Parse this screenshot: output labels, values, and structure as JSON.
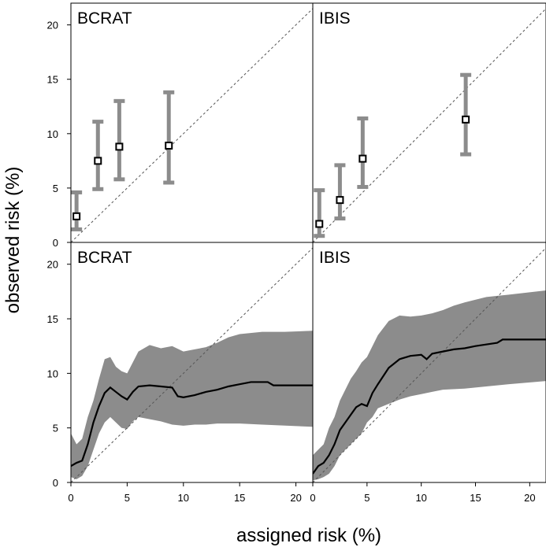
{
  "figure": {
    "xlabel": "assigned risk (%)",
    "ylabel": "observed risk (%)",
    "colors": {
      "band": "#8c8c8c",
      "bar": "#8c8c8c",
      "line": "#000000",
      "diag": "#555555",
      "frame": "#000000"
    }
  },
  "chart_data": [
    {
      "type": "scatter",
      "title": "BCRAT",
      "xlim": [
        0,
        21.5
      ],
      "ylim": [
        0,
        22
      ],
      "xticks": [
        0,
        5,
        10,
        15,
        20
      ],
      "yticks": [
        0,
        5,
        10,
        15,
        20
      ],
      "reference_line": "y = x",
      "points": [
        {
          "x": 0.5,
          "y": 2.4,
          "lo": 1.2,
          "hi": 4.6
        },
        {
          "x": 2.4,
          "y": 7.5,
          "lo": 4.9,
          "hi": 11.1
        },
        {
          "x": 4.3,
          "y": 8.8,
          "lo": 5.8,
          "hi": 13.0
        },
        {
          "x": 8.7,
          "y": 8.9,
          "lo": 5.5,
          "hi": 13.8
        }
      ]
    },
    {
      "type": "scatter",
      "title": "IBIS",
      "xlim": [
        0,
        21.5
      ],
      "ylim": [
        0,
        22
      ],
      "xticks": [
        0,
        5,
        10,
        15,
        20
      ],
      "yticks": [
        0,
        5,
        10,
        15,
        20
      ],
      "reference_line": "y = x",
      "points": [
        {
          "x": 0.6,
          "y": 1.7,
          "lo": 0.6,
          "hi": 4.8
        },
        {
          "x": 2.5,
          "y": 3.9,
          "lo": 2.2,
          "hi": 7.1
        },
        {
          "x": 4.6,
          "y": 7.7,
          "lo": 5.1,
          "hi": 11.4
        },
        {
          "x": 14.1,
          "y": 11.3,
          "lo": 8.1,
          "hi": 15.4
        }
      ]
    },
    {
      "type": "line",
      "title": "BCRAT",
      "xlim": [
        0,
        21.5
      ],
      "ylim": [
        0,
        22
      ],
      "xticks": [
        0,
        5,
        10,
        15,
        20
      ],
      "yticks": [
        0,
        5,
        10,
        15,
        20
      ],
      "reference_line": "y = x",
      "line": [
        [
          0,
          1.5
        ],
        [
          0.5,
          1.8
        ],
        [
          1,
          2.0
        ],
        [
          1.5,
          3.5
        ],
        [
          2,
          5.5
        ],
        [
          2.5,
          7.0
        ],
        [
          3,
          8.2
        ],
        [
          3.5,
          8.7
        ],
        [
          4,
          8.3
        ],
        [
          4.5,
          7.9
        ],
        [
          5,
          7.6
        ],
        [
          5.5,
          8.3
        ],
        [
          6,
          8.8
        ],
        [
          7,
          8.9
        ],
        [
          8,
          8.8
        ],
        [
          9,
          8.7
        ],
        [
          9.5,
          7.9
        ],
        [
          10,
          7.8
        ],
        [
          11,
          8.0
        ],
        [
          12,
          8.3
        ],
        [
          13,
          8.5
        ],
        [
          14,
          8.8
        ],
        [
          15,
          9.0
        ],
        [
          16,
          9.2
        ],
        [
          17.5,
          9.2
        ],
        [
          18,
          8.9
        ],
        [
          21.5,
          8.9
        ]
      ],
      "band_upper": [
        [
          0,
          4.5
        ],
        [
          0.5,
          3.5
        ],
        [
          1,
          4.0
        ],
        [
          1.5,
          6.0
        ],
        [
          2,
          7.5
        ],
        [
          2.5,
          9.5
        ],
        [
          3,
          11.3
        ],
        [
          3.5,
          11.5
        ],
        [
          4,
          10.6
        ],
        [
          4.5,
          10.2
        ],
        [
          5,
          10.0
        ],
        [
          5.5,
          11.0
        ],
        [
          6,
          12.0
        ],
        [
          7,
          12.6
        ],
        [
          8,
          12.3
        ],
        [
          9,
          12.5
        ],
        [
          10,
          12.0
        ],
        [
          11,
          12.2
        ],
        [
          12,
          12.4
        ],
        [
          13,
          12.8
        ],
        [
          14,
          13.3
        ],
        [
          15,
          13.6
        ],
        [
          17,
          13.8
        ],
        [
          19,
          13.8
        ],
        [
          21.5,
          13.9
        ]
      ],
      "band_lower": [
        [
          0,
          0.5
        ],
        [
          0.5,
          0.3
        ],
        [
          1,
          0.6
        ],
        [
          1.5,
          1.5
        ],
        [
          2,
          3.0
        ],
        [
          2.5,
          4.5
        ],
        [
          3,
          5.5
        ],
        [
          3.5,
          6.0
        ],
        [
          4,
          5.5
        ],
        [
          4.5,
          5.0
        ],
        [
          5,
          4.9
        ],
        [
          5.5,
          5.6
        ],
        [
          6,
          6.0
        ],
        [
          7,
          5.8
        ],
        [
          8,
          5.6
        ],
        [
          9,
          5.3
        ],
        [
          10,
          5.2
        ],
        [
          11,
          5.3
        ],
        [
          12,
          5.3
        ],
        [
          13,
          5.4
        ],
        [
          15,
          5.4
        ],
        [
          17,
          5.3
        ],
        [
          21.5,
          5.1
        ]
      ]
    },
    {
      "type": "line",
      "title": "IBIS",
      "xlim": [
        0,
        21.5
      ],
      "ylim": [
        0,
        22
      ],
      "xticks": [
        0,
        5,
        10,
        15,
        20
      ],
      "yticks": [
        0,
        5,
        10,
        15,
        20
      ],
      "reference_line": "y = x",
      "line": [
        [
          0,
          0.8
        ],
        [
          0.5,
          1.5
        ],
        [
          1,
          1.8
        ],
        [
          1.5,
          2.5
        ],
        [
          2,
          3.5
        ],
        [
          2.5,
          4.8
        ],
        [
          3,
          5.5
        ],
        [
          3.5,
          6.2
        ],
        [
          4,
          6.9
        ],
        [
          4.5,
          7.2
        ],
        [
          5,
          7.0
        ],
        [
          5.5,
          8.2
        ],
        [
          6,
          9.0
        ],
        [
          7,
          10.5
        ],
        [
          8,
          11.3
        ],
        [
          9,
          11.6
        ],
        [
          10,
          11.7
        ],
        [
          10.5,
          11.3
        ],
        [
          11,
          11.8
        ],
        [
          12,
          12.0
        ],
        [
          13,
          12.2
        ],
        [
          14,
          12.3
        ],
        [
          15,
          12.5
        ],
        [
          17,
          12.8
        ],
        [
          17.5,
          13.1
        ],
        [
          21.5,
          13.1
        ]
      ],
      "band_upper": [
        [
          0,
          2.5
        ],
        [
          0.5,
          3.0
        ],
        [
          1,
          3.5
        ],
        [
          1.5,
          5.0
        ],
        [
          2,
          6.0
        ],
        [
          2.5,
          7.5
        ],
        [
          3,
          8.5
        ],
        [
          3.5,
          9.5
        ],
        [
          4,
          10.2
        ],
        [
          4.5,
          11.0
        ],
        [
          5,
          11.5
        ],
        [
          5.5,
          12.5
        ],
        [
          6,
          13.5
        ],
        [
          7,
          14.8
        ],
        [
          8,
          15.3
        ],
        [
          9,
          15.2
        ],
        [
          10,
          15.3
        ],
        [
          11,
          15.5
        ],
        [
          12,
          15.8
        ],
        [
          13,
          16.2
        ],
        [
          14,
          16.5
        ],
        [
          16,
          17.0
        ],
        [
          18,
          17.2
        ],
        [
          21.5,
          17.6
        ]
      ],
      "band_lower": [
        [
          0,
          0.2
        ],
        [
          0.5,
          0.3
        ],
        [
          1,
          0.5
        ],
        [
          1.5,
          0.8
        ],
        [
          2,
          1.5
        ],
        [
          2.5,
          2.5
        ],
        [
          3,
          3.0
        ],
        [
          3.5,
          3.5
        ],
        [
          4,
          4.0
        ],
        [
          4.5,
          4.5
        ],
        [
          5,
          5.5
        ],
        [
          5.5,
          6.0
        ],
        [
          6,
          6.8
        ],
        [
          7,
          7.2
        ],
        [
          8,
          7.6
        ],
        [
          9,
          7.9
        ],
        [
          10,
          8.1
        ],
        [
          11,
          8.3
        ],
        [
          12,
          8.5
        ],
        [
          14,
          8.6
        ],
        [
          16,
          8.8
        ],
        [
          18,
          9.0
        ],
        [
          21.5,
          9.3
        ]
      ]
    }
  ]
}
